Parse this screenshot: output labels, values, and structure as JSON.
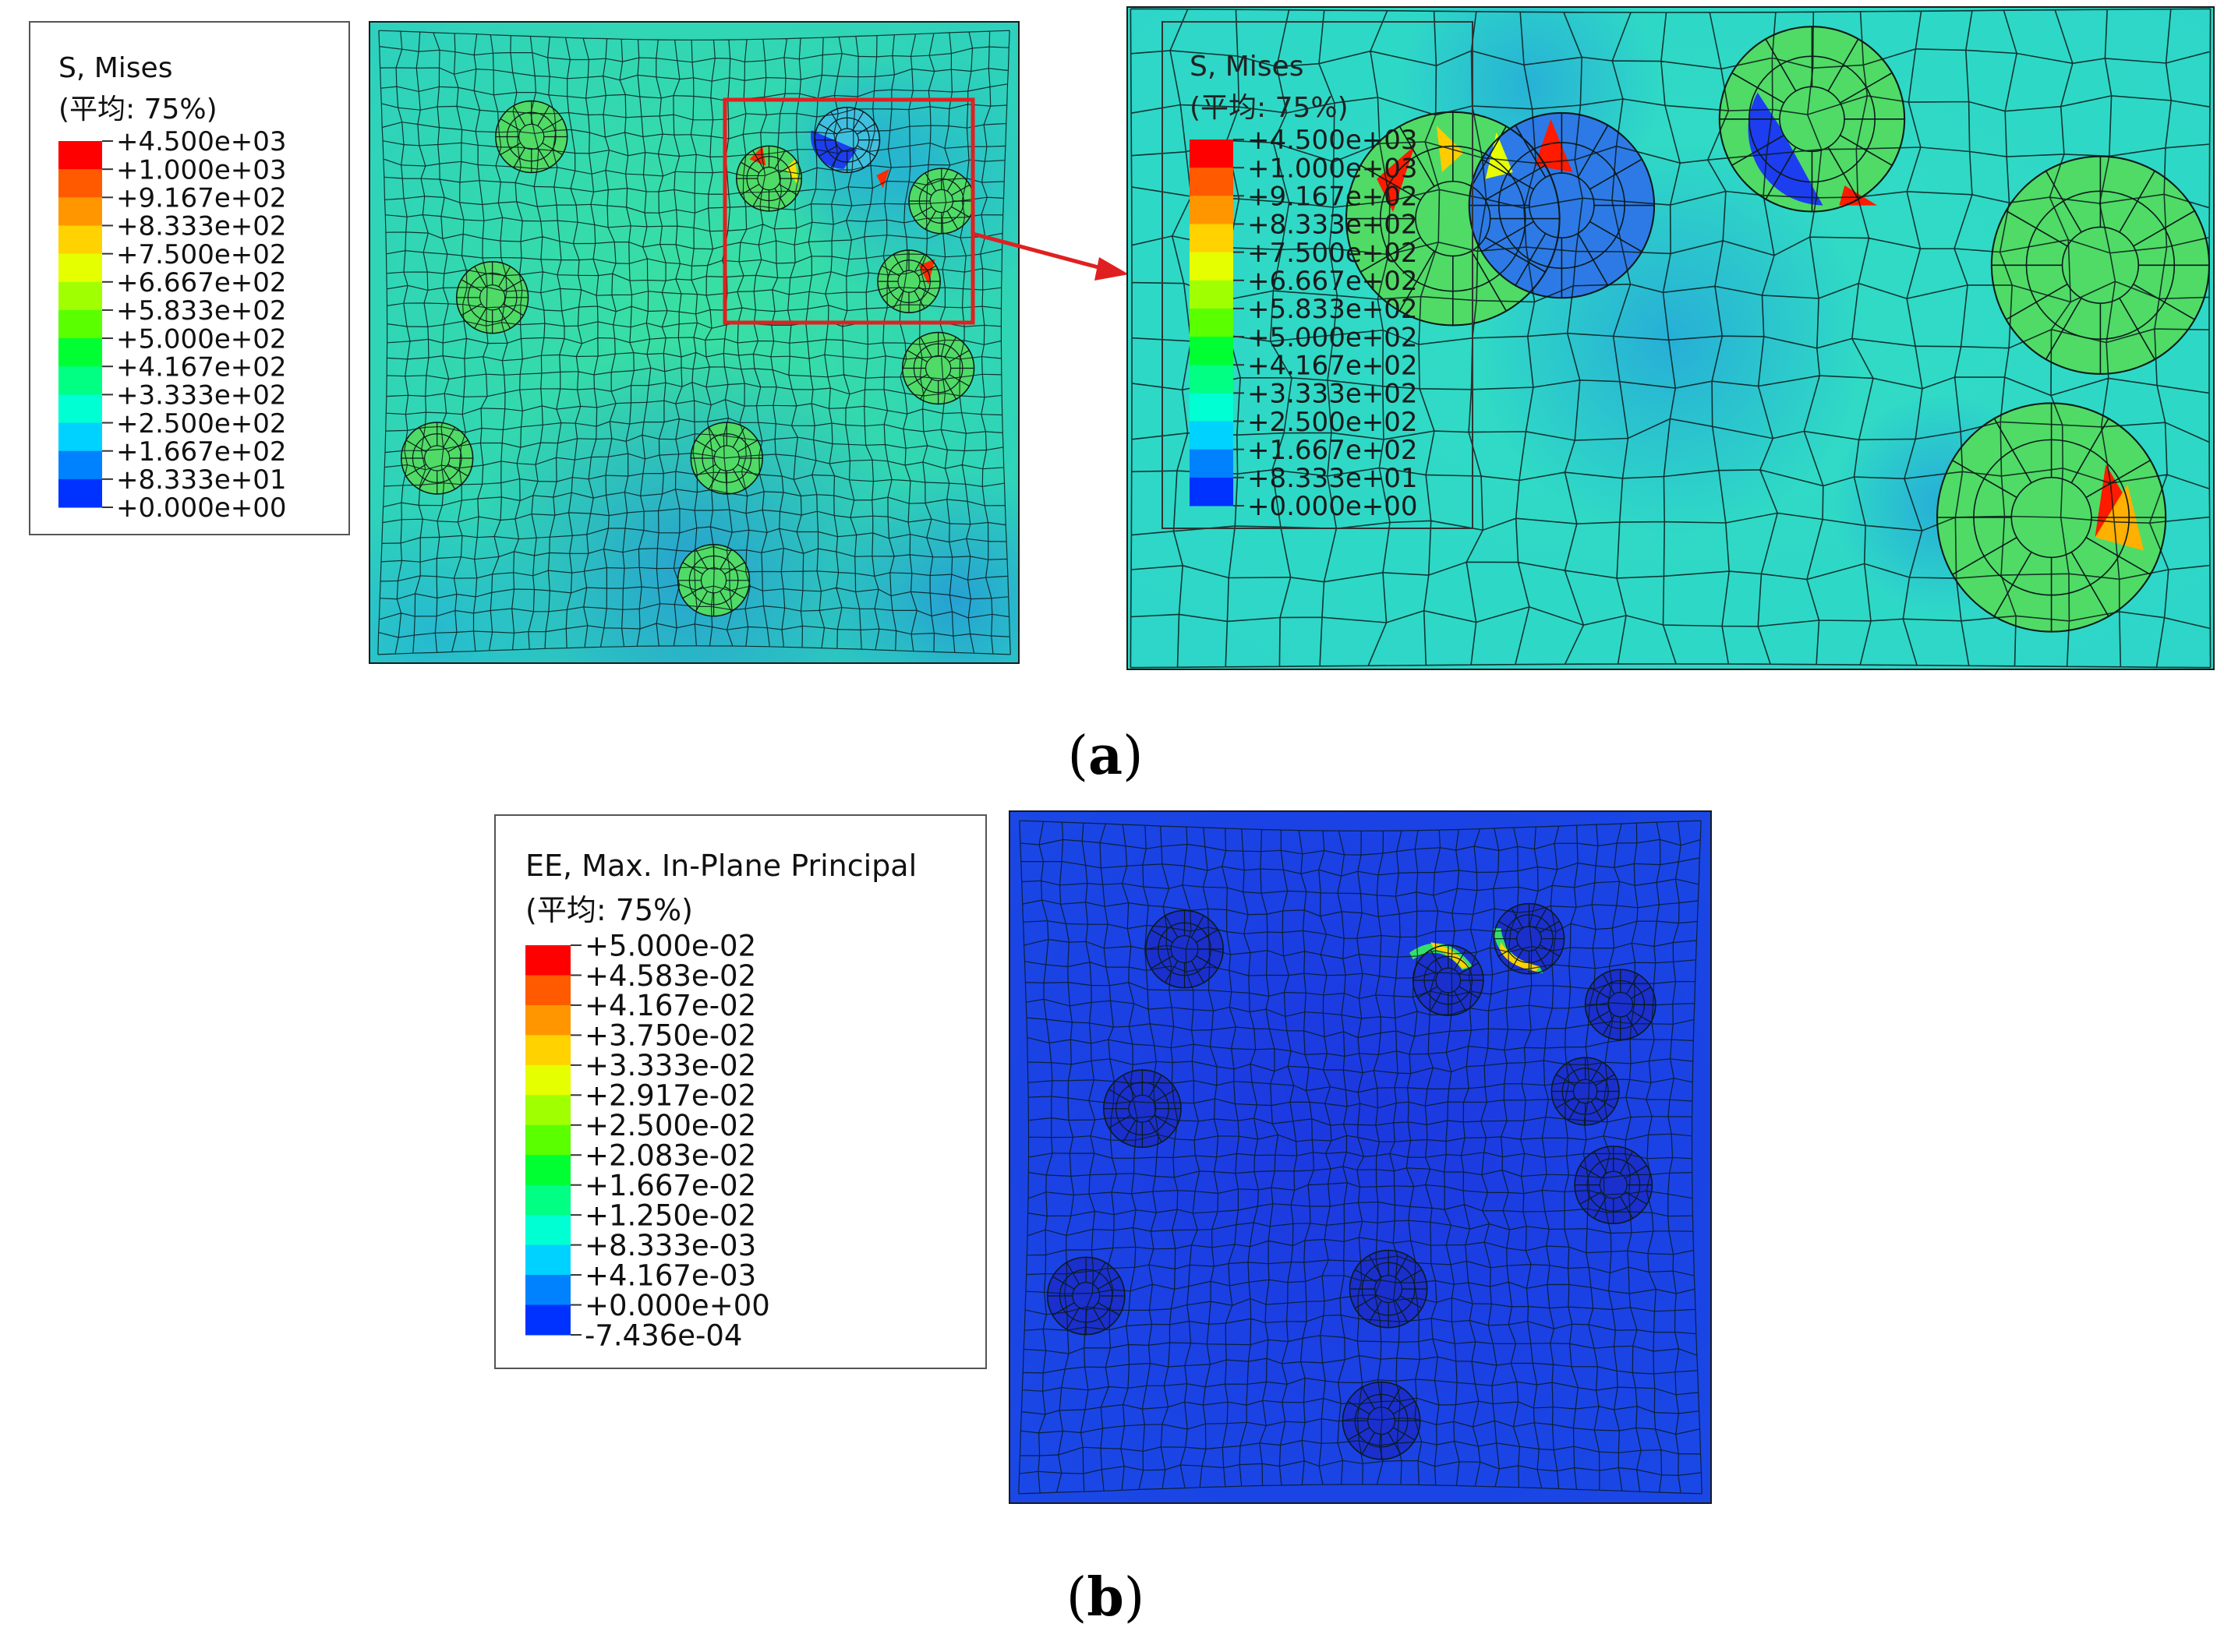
{
  "panel_a": {
    "caption_open": "(",
    "caption_letter": "a",
    "caption_close": ")",
    "legend_title": "S, Mises",
    "legend_subtitle": "(平均: 75%)",
    "legend_values": [
      "+4.500e+03",
      "+1.000e+03",
      "+9.167e+02",
      "+8.333e+02",
      "+7.500e+02",
      "+6.667e+02",
      "+5.833e+02",
      "+5.000e+02",
      "+4.167e+02",
      "+3.333e+02",
      "+2.500e+02",
      "+1.667e+02",
      "+8.333e+01",
      "+0.000e+00"
    ],
    "zoom_legend_title": "S, Mises",
    "zoom_legend_subtitle": "(平均: 75%)"
  },
  "panel_b": {
    "caption_open": "(",
    "caption_letter": "b",
    "caption_close": ")",
    "legend_title": "EE, Max. In-Plane Principal",
    "legend_subtitle": "(平均: 75%)",
    "legend_values": [
      "+5.000e-02",
      "+4.583e-02",
      "+4.167e-02",
      "+3.750e-02",
      "+3.333e-02",
      "+2.917e-02",
      "+2.500e-02",
      "+2.083e-02",
      "+1.667e-02",
      "+1.250e-02",
      "+8.333e-03",
      "+4.167e-03",
      "+0.000e+00",
      "-7.436e-04"
    ]
  },
  "colors": {
    "contour": [
      "#ff0000",
      "#ff5a00",
      "#ff9600",
      "#ffd200",
      "#e6ff00",
      "#a0ff00",
      "#5aff00",
      "#00ff32",
      "#00ff82",
      "#00ffd2",
      "#00d2ff",
      "#0082ff",
      "#0032ff",
      "#0000ff"
    ],
    "matrix_a": "#2dd6b4",
    "matrix_b": "#1a3fe0",
    "highlight": "#e02020"
  }
}
